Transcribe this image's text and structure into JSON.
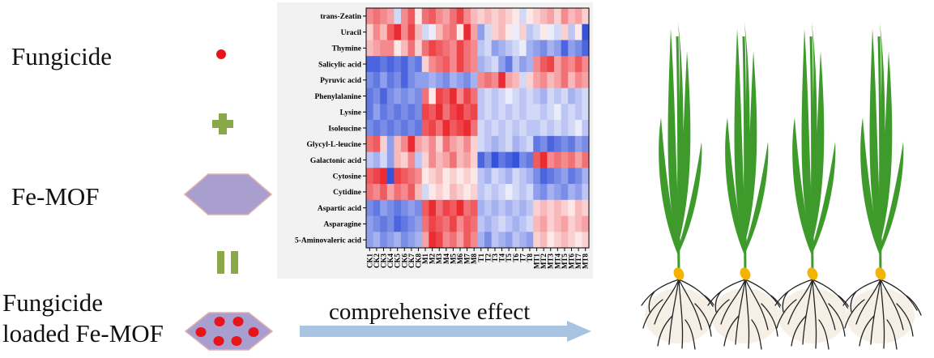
{
  "labels": {
    "fungicide": "Fungicide",
    "fe_mof": "Fe-MOF",
    "loaded_line1": "Fungicide",
    "loaded_line2": "loaded Fe-MOF",
    "effect": "comprehensive effect"
  },
  "operators": {
    "plus": "plus-sign",
    "equals": "equals-sign"
  },
  "colors": {
    "fungicide": "#e8141b",
    "operator": "#8aa84a",
    "mof": "#a99fcf",
    "mof_border": "#e0b0b0",
    "arrow": "#a9c4e2",
    "leaf": "#3f9a2c",
    "seed": "#f2b400",
    "root": "#222222",
    "heat_high": "#e8141b",
    "heat_low": "#1f3fd6",
    "heat_mid": "#ffffff"
  },
  "chart_data": {
    "type": "heatmap",
    "rows": [
      "trans-Zeatin",
      "Uracil",
      "Thymine",
      "Salicylic acid",
      "Pyruvic acid",
      "Phenylalanine",
      "Lysine",
      "Isoleucine",
      "Glycyl-L-leucine",
      "Galactonic acid",
      "Cytosine",
      "Cytidine",
      "Aspartic acid",
      "Asparagine",
      "5-Aminovaleric acid"
    ],
    "columns": [
      "CK1",
      "CK2",
      "CK3",
      "CK4",
      "CK5",
      "CK6",
      "CK7",
      "CK8",
      "M1",
      "M2",
      "M3",
      "M4",
      "M5",
      "M6",
      "M7",
      "M8",
      "T1",
      "T2",
      "T3",
      "T4",
      "T5",
      "T6",
      "T7",
      "T8",
      "MT1",
      "MT2",
      "MT3",
      "MT4",
      "MT5",
      "MT6",
      "MT7",
      "MT8"
    ],
    "values": [
      [
        0.5,
        0.6,
        0.5,
        0.4,
        -0.2,
        0.5,
        0.7,
        0.1,
        0.6,
        0.7,
        0.5,
        0.4,
        0.6,
        0.8,
        0.5,
        0.3,
        0.2,
        0.3,
        0.2,
        0.3,
        0.2,
        0.1,
        -0.2,
        0.1,
        0.2,
        0.3,
        0.4,
        0.2,
        0.5,
        0.3,
        0.4,
        0.2
      ],
      [
        0.2,
        0.5,
        0.3,
        0.7,
        0.9,
        0.5,
        0.8,
        0.3,
        -0.2,
        -0.1,
        0.3,
        0.5,
        0.6,
        0.1,
        0.9,
        0.4,
        -0.5,
        -0.2,
        0.2,
        0.3,
        0.1,
        -0.1,
        0.2,
        -0.3,
        -0.2,
        0.1,
        -0.1,
        -0.2,
        0.2,
        -0.3,
        0.1,
        -0.9
      ],
      [
        0.3,
        0.4,
        0.5,
        0.5,
        0.1,
        0.3,
        0.6,
        0.2,
        0.6,
        0.8,
        0.7,
        0.6,
        0.5,
        0.8,
        0.6,
        0.5,
        -0.3,
        -0.2,
        -0.5,
        -0.4,
        -0.3,
        -0.2,
        -0.1,
        -0.4,
        -0.5,
        -0.6,
        -0.4,
        -0.5,
        -0.8,
        -0.5,
        -0.6,
        -0.8
      ],
      [
        -0.8,
        -0.8,
        -0.7,
        -0.8,
        -0.7,
        -0.8,
        -0.6,
        -0.7,
        0.2,
        0.5,
        0.6,
        0.7,
        0.5,
        0.8,
        0.6,
        0.5,
        -0.4,
        -0.3,
        -0.2,
        -0.5,
        -0.7,
        -0.3,
        -0.5,
        -0.4,
        0.5,
        0.7,
        0.8,
        0.4,
        0.6,
        0.5,
        0.7,
        0.5
      ],
      [
        -0.6,
        -0.7,
        -0.5,
        -0.7,
        -0.6,
        -0.8,
        -0.6,
        -0.5,
        -0.5,
        -0.4,
        -0.5,
        -0.6,
        -0.4,
        -0.5,
        -0.6,
        -0.4,
        0.5,
        0.6,
        0.5,
        0.9,
        0.4,
        0.3,
        -0.2,
        0.2,
        0.4,
        0.5,
        0.3,
        0.4,
        0.6,
        0.3,
        0.5,
        0.4
      ],
      [
        -0.7,
        -0.6,
        -0.8,
        -0.6,
        -0.5,
        -0.6,
        -0.5,
        -0.6,
        0.6,
        0.1,
        0.8,
        0.7,
        0.9,
        0.5,
        0.8,
        0.6,
        -0.3,
        -0.2,
        -0.3,
        -0.2,
        -0.1,
        -0.2,
        -0.3,
        -0.2,
        -0.3,
        -0.4,
        -0.2,
        -0.3,
        -0.2,
        -0.4,
        -0.3,
        -0.2
      ],
      [
        -0.7,
        -0.5,
        -0.7,
        -0.6,
        -0.7,
        -0.6,
        -0.7,
        -0.6,
        0.8,
        0.7,
        0.9,
        0.6,
        0.8,
        0.9,
        0.7,
        0.8,
        -0.3,
        -0.2,
        -0.3,
        -0.2,
        -0.3,
        -0.2,
        -0.3,
        -0.2,
        -0.2,
        -0.3,
        -0.2,
        -0.1,
        -0.3,
        -0.2,
        -0.3,
        -0.2
      ],
      [
        -0.6,
        -0.7,
        -0.6,
        -0.7,
        -0.6,
        -0.7,
        -0.6,
        -0.7,
        0.7,
        0.8,
        0.6,
        0.9,
        0.7,
        0.8,
        0.9,
        0.6,
        -0.2,
        -0.3,
        -0.2,
        -0.3,
        -0.2,
        -0.3,
        -0.2,
        -0.3,
        -0.3,
        -0.2,
        -0.3,
        -0.2,
        -0.3,
        -0.2,
        -0.1,
        -0.3
      ],
      [
        0.6,
        0.7,
        0.2,
        -0.5,
        0.3,
        0.5,
        0.9,
        0.4,
        0.3,
        0.5,
        0.2,
        0.6,
        0.4,
        0.3,
        0.5,
        0.2,
        -0.2,
        -0.3,
        -0.4,
        -0.3,
        -0.2,
        -0.4,
        -0.3,
        -0.2,
        -0.7,
        -0.6,
        -0.8,
        -0.7,
        -0.6,
        -0.7,
        -0.5,
        -0.6
      ],
      [
        -0.3,
        -0.4,
        -0.2,
        -0.5,
        0.3,
        0.2,
        0.5,
        -0.3,
        0.2,
        0.5,
        0.3,
        0.4,
        0.6,
        0.3,
        0.4,
        0.2,
        -0.8,
        -0.6,
        -0.9,
        -0.7,
        -0.8,
        -0.9,
        -0.6,
        -0.7,
        0.7,
        0.9,
        0.5,
        0.6,
        0.5,
        0.6,
        0.4,
        0.6
      ],
      [
        0.7,
        0.8,
        0.9,
        -0.9,
        0.8,
        0.7,
        0.6,
        0.5,
        0.1,
        0.2,
        0.3,
        0.1,
        0.2,
        0.1,
        0.2,
        0.1,
        -0.3,
        -0.4,
        -0.2,
        -0.3,
        -0.4,
        -0.2,
        -0.3,
        -0.4,
        -0.6,
        -0.8,
        -0.7,
        -0.6,
        -0.5,
        -0.7,
        -0.6,
        -0.4
      ],
      [
        0.6,
        0.5,
        0.7,
        0.4,
        0.6,
        0.5,
        0.7,
        0.3,
        -0.2,
        0.1,
        0.2,
        0.1,
        0.3,
        0.2,
        0.1,
        0.2,
        -0.3,
        -0.2,
        -0.3,
        -0.2,
        -0.1,
        -0.2,
        -0.3,
        -0.2,
        -0.5,
        -0.6,
        -0.4,
        -0.5,
        -0.6,
        -0.4,
        -0.5,
        -0.3
      ],
      [
        -0.6,
        -0.7,
        -0.5,
        -0.6,
        -0.7,
        -0.6,
        -0.5,
        -0.6,
        0.7,
        0.9,
        0.6,
        0.8,
        0.7,
        0.9,
        0.6,
        0.7,
        -0.4,
        -0.3,
        -0.4,
        -0.3,
        -0.4,
        -0.3,
        -0.4,
        -0.3,
        0.2,
        0.3,
        0.2,
        0.3,
        0.2,
        0.1,
        0.3,
        0.2
      ],
      [
        -0.5,
        -0.6,
        -0.7,
        -0.6,
        -0.8,
        -0.7,
        -0.6,
        -0.5,
        0.6,
        0.8,
        0.7,
        0.6,
        0.8,
        0.5,
        0.7,
        0.6,
        -0.3,
        -0.4,
        -0.3,
        -0.2,
        -0.3,
        -0.4,
        -0.3,
        -0.2,
        0.3,
        0.4,
        0.2,
        0.3,
        0.4,
        0.2,
        0.3,
        0.4
      ],
      [
        -0.5,
        -0.4,
        -0.6,
        -0.5,
        -0.4,
        -0.6,
        -0.5,
        -0.4,
        0.4,
        0.9,
        0.8,
        0.5,
        0.6,
        0.4,
        0.7,
        0.5,
        -0.4,
        -0.6,
        -0.3,
        -0.4,
        -0.5,
        -0.3,
        -0.4,
        -0.5,
        0.2,
        0.3,
        0.1,
        0.2,
        0.3,
        0.2,
        0.1,
        0.2
      ]
    ],
    "range": [
      -1,
      1
    ]
  },
  "plants": {
    "count": 4
  }
}
